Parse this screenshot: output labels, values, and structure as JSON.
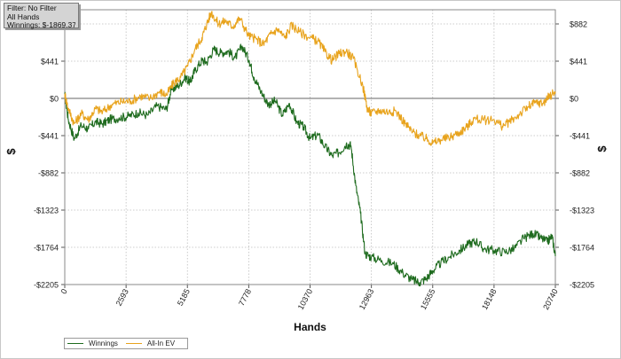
{
  "filter_box": {
    "filter": "Filter: No Filter",
    "hands": "All Hands",
    "winnings": "Winnings: $-1869.37"
  },
  "chart_data": {
    "type": "line",
    "title": "",
    "xlabel": "Hands",
    "ylabel": "$",
    "xlim": [
      0,
      20740
    ],
    "ylim": [
      -2205,
      1050
    ],
    "x_ticks": [
      0,
      2593,
      5185,
      7778,
      10370,
      12963,
      15555,
      18148,
      20740
    ],
    "x_tick_labels": [
      "0",
      "2593",
      "5185",
      "7778",
      "10370",
      "12963",
      "15555",
      "18148",
      "20740"
    ],
    "y_ticks": [
      882,
      441,
      0,
      -441,
      -882,
      -1323,
      -1764,
      -2205
    ],
    "y_tick_labels": [
      "$882",
      "$441",
      "$0",
      "-$441",
      "-$882",
      "-$1323",
      "-$1764",
      "-$2205"
    ],
    "grid": true,
    "legend_position": "bottom-left",
    "series": [
      {
        "name": "Winnings",
        "color": "#1e6b1e",
        "points": [
          [
            0,
            50
          ],
          [
            150,
            -250
          ],
          [
            400,
            -480
          ],
          [
            700,
            -320
          ],
          [
            1000,
            -360
          ],
          [
            1300,
            -280
          ],
          [
            1600,
            -300
          ],
          [
            1900,
            -250
          ],
          [
            2300,
            -230
          ],
          [
            2700,
            -210
          ],
          [
            3100,
            -170
          ],
          [
            3500,
            -200
          ],
          [
            3900,
            -90
          ],
          [
            4300,
            -130
          ],
          [
            4500,
            100
          ],
          [
            4800,
            150
          ],
          [
            5100,
            250
          ],
          [
            5300,
            190
          ],
          [
            5500,
            330
          ],
          [
            5800,
            450
          ],
          [
            6000,
            430
          ],
          [
            6300,
            580
          ],
          [
            6600,
            540
          ],
          [
            6900,
            560
          ],
          [
            7200,
            480
          ],
          [
            7500,
            620
          ],
          [
            7800,
            450
          ],
          [
            8000,
            250
          ],
          [
            8300,
            80
          ],
          [
            8600,
            -70
          ],
          [
            8900,
            -30
          ],
          [
            9200,
            -200
          ],
          [
            9500,
            -60
          ],
          [
            9800,
            -280
          ],
          [
            10100,
            -340
          ],
          [
            10370,
            -480
          ],
          [
            10700,
            -430
          ],
          [
            11000,
            -570
          ],
          [
            11300,
            -680
          ],
          [
            11600,
            -640
          ],
          [
            11900,
            -540
          ],
          [
            12100,
            -560
          ],
          [
            12300,
            -1030
          ],
          [
            12500,
            -1360
          ],
          [
            12700,
            -1840
          ],
          [
            12963,
            -1880
          ],
          [
            13400,
            -1920
          ],
          [
            13900,
            -1960
          ],
          [
            14300,
            -2070
          ],
          [
            14700,
            -2150
          ],
          [
            15000,
            -2180
          ],
          [
            15300,
            -2130
          ],
          [
            15555,
            -2040
          ],
          [
            15900,
            -1950
          ],
          [
            16300,
            -1870
          ],
          [
            16700,
            -1800
          ],
          [
            17100,
            -1720
          ],
          [
            17400,
            -1690
          ],
          [
            17700,
            -1780
          ],
          [
            18148,
            -1800
          ],
          [
            18600,
            -1820
          ],
          [
            19000,
            -1780
          ],
          [
            19400,
            -1660
          ],
          [
            19800,
            -1600
          ],
          [
            20100,
            -1650
          ],
          [
            20400,
            -1700
          ],
          [
            20600,
            -1630
          ],
          [
            20740,
            -1869.37
          ]
        ]
      },
      {
        "name": "All-In EV",
        "color": "#e8a31c",
        "points": [
          [
            0,
            50
          ],
          [
            150,
            -120
          ],
          [
            400,
            -300
          ],
          [
            700,
            -180
          ],
          [
            1000,
            -250
          ],
          [
            1300,
            -120
          ],
          [
            1600,
            -160
          ],
          [
            2000,
            -70
          ],
          [
            2400,
            -40
          ],
          [
            2800,
            -30
          ],
          [
            3200,
            30
          ],
          [
            3600,
            0
          ],
          [
            4000,
            80
          ],
          [
            4300,
            40
          ],
          [
            4600,
            180
          ],
          [
            4900,
            250
          ],
          [
            5200,
            380
          ],
          [
            5500,
            580
          ],
          [
            5800,
            720
          ],
          [
            6000,
            880
          ],
          [
            6200,
            1020
          ],
          [
            6500,
            880
          ],
          [
            6800,
            920
          ],
          [
            7100,
            850
          ],
          [
            7400,
            950
          ],
          [
            7778,
            740
          ],
          [
            8100,
            700
          ],
          [
            8400,
            640
          ],
          [
            8700,
            760
          ],
          [
            9000,
            820
          ],
          [
            9300,
            720
          ],
          [
            9600,
            870
          ],
          [
            9900,
            790
          ],
          [
            10370,
            720
          ],
          [
            10700,
            680
          ],
          [
            11000,
            550
          ],
          [
            11300,
            450
          ],
          [
            11600,
            530
          ],
          [
            11900,
            560
          ],
          [
            12200,
            470
          ],
          [
            12600,
            150
          ],
          [
            12800,
            -130
          ],
          [
            12963,
            -180
          ],
          [
            13300,
            -140
          ],
          [
            13700,
            -160
          ],
          [
            14000,
            -150
          ],
          [
            14400,
            -300
          ],
          [
            14700,
            -400
          ],
          [
            15000,
            -440
          ],
          [
            15300,
            -480
          ],
          [
            15555,
            -530
          ],
          [
            15900,
            -490
          ],
          [
            16300,
            -460
          ],
          [
            16700,
            -400
          ],
          [
            17000,
            -340
          ],
          [
            17300,
            -240
          ],
          [
            17700,
            -260
          ],
          [
            18148,
            -250
          ],
          [
            18500,
            -330
          ],
          [
            18800,
            -280
          ],
          [
            19200,
            -190
          ],
          [
            19600,
            -100
          ],
          [
            19900,
            -50
          ],
          [
            20200,
            -60
          ],
          [
            20500,
            30
          ],
          [
            20740,
            80
          ]
        ]
      }
    ]
  },
  "legend": {
    "winnings": "Winnings",
    "allin": "All-In EV"
  },
  "colors": {
    "winnings": "#1e6b1e",
    "allin": "#e8a31c",
    "grid": "#bdbdbd",
    "zero_line": "#666666"
  }
}
